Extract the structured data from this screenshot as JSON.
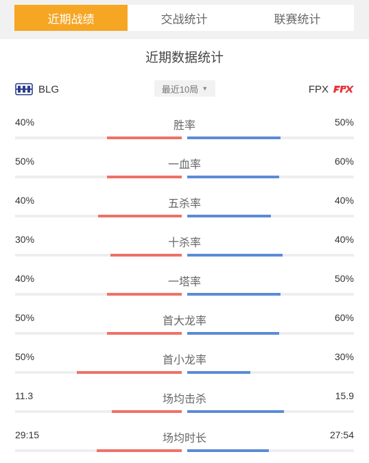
{
  "tabs": [
    {
      "label": "近期战绩",
      "active": true
    },
    {
      "label": "交战统计",
      "active": false
    },
    {
      "label": "联赛统计",
      "active": false
    }
  ],
  "title": "近期数据统计",
  "teams": {
    "left": {
      "name": "BLG",
      "logo_icon": "blg-logo-icon"
    },
    "right": {
      "name": "FPX",
      "logo_icon": "fpx-logo-icon"
    }
  },
  "filter": {
    "label": "最近10局",
    "icon": "caret-down-icon"
  },
  "colors": {
    "accent": "#f5a623",
    "left_bar": "#ee7168",
    "right_bar": "#5b8bd5",
    "track": "#eeeeee"
  },
  "stats": [
    {
      "label": "胜率",
      "left": "40%",
      "right": "50%",
      "left_fill": 0.45,
      "right_fill": 0.56
    },
    {
      "label": "一血率",
      "left": "50%",
      "right": "60%",
      "left_fill": 0.45,
      "right_fill": 0.55
    },
    {
      "label": "五杀率",
      "left": "40%",
      "right": "40%",
      "left_fill": 0.5,
      "right_fill": 0.5
    },
    {
      "label": "十杀率",
      "left": "30%",
      "right": "40%",
      "left_fill": 0.43,
      "right_fill": 0.57
    },
    {
      "label": "一塔率",
      "left": "40%",
      "right": "50%",
      "left_fill": 0.45,
      "right_fill": 0.56
    },
    {
      "label": "首大龙率",
      "left": "50%",
      "right": "60%",
      "left_fill": 0.45,
      "right_fill": 0.55
    },
    {
      "label": "首小龙率",
      "left": "50%",
      "right": "30%",
      "left_fill": 0.63,
      "right_fill": 0.38
    },
    {
      "label": "场均击杀",
      "left": "11.3",
      "right": "15.9",
      "left_fill": 0.42,
      "right_fill": 0.58
    },
    {
      "label": "场均时长",
      "left": "29:15",
      "right": "27:54",
      "left_fill": 0.51,
      "right_fill": 0.49
    }
  ]
}
